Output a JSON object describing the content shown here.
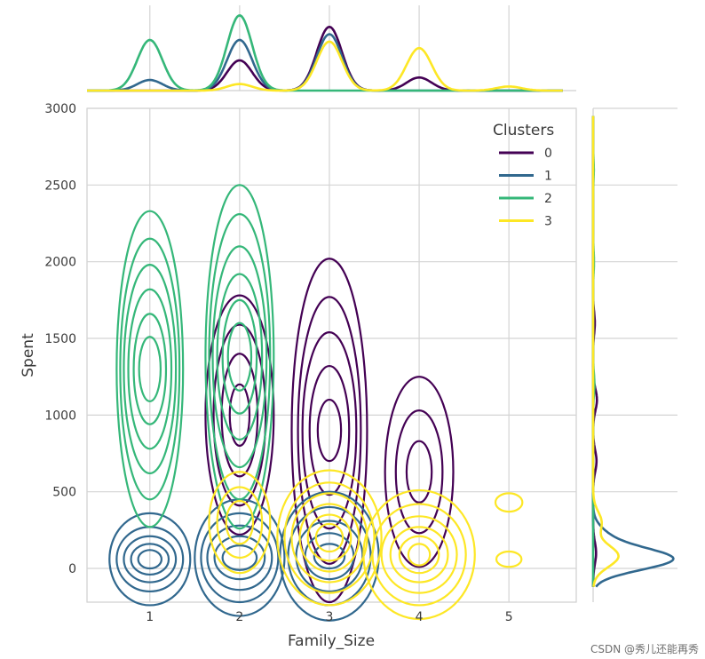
{
  "chart_data": {
    "type": "kde-jointplot",
    "xlabel": "Family_Size",
    "ylabel": "Spent",
    "x_ticks": [
      "1",
      "2",
      "3",
      "4",
      "5"
    ],
    "y_ticks": [
      "0",
      "500",
      "1000",
      "1500",
      "2000",
      "2500",
      "3000"
    ],
    "xlim": [
      0.3,
      5.75
    ],
    "ylim": [
      -220,
      3000
    ],
    "grid": true,
    "legend": {
      "title": "Clusters",
      "placement": "top-right",
      "entries": [
        "0",
        "1",
        "2",
        "3"
      ]
    },
    "series": [
      {
        "name": "0",
        "color": "#440154",
        "marginal_x_peaks": [
          {
            "x": 2,
            "h": 0.37
          },
          {
            "x": 3,
            "h": 0.78
          },
          {
            "x": 4,
            "h": 0.16
          }
        ],
        "marginal_y_peaks": [
          {
            "y": 100,
            "w": 0.035
          },
          {
            "y": 700,
            "w": 0.04
          },
          {
            "y": 1100,
            "w": 0.045
          },
          {
            "y": 1600,
            "w": 0.02
          }
        ],
        "kde_modes": [
          {
            "x": 2,
            "y": 1000,
            "levels": [
              [
                0.38,
                780
              ],
              [
                0.29,
                590
              ],
              [
                0.2,
                400
              ],
              [
                0.11,
                200
              ]
            ]
          },
          {
            "x": 3,
            "y": 900,
            "levels": [
              [
                0.42,
                1120
              ],
              [
                0.35,
                870
              ],
              [
                0.3,
                640
              ],
              [
                0.22,
                420
              ],
              [
                0.13,
                200
              ]
            ]
          },
          {
            "x": 4,
            "y": 630,
            "levels": [
              [
                0.38,
                620
              ],
              [
                0.26,
                400
              ],
              [
                0.14,
                200
              ]
            ]
          }
        ]
      },
      {
        "name": "1",
        "color": "#31688e",
        "marginal_x_peaks": [
          {
            "x": 1,
            "h": 0.13
          },
          {
            "x": 2,
            "h": 0.62
          },
          {
            "x": 3,
            "h": 0.69
          }
        ],
        "marginal_y_peaks": [
          {
            "y": 60,
            "w": 0.93
          },
          {
            "y": 200,
            "w": 0.15
          }
        ],
        "kde_modes": [
          {
            "x": 1,
            "y": 60,
            "levels": [
              [
                0.45,
                300
              ],
              [
                0.37,
                210
              ],
              [
                0.29,
                150
              ],
              [
                0.21,
                100
              ],
              [
                0.13,
                60
              ]
            ]
          },
          {
            "x": 2,
            "y": 70,
            "levels": [
              [
                0.5,
                380
              ],
              [
                0.43,
                290
              ],
              [
                0.36,
                210
              ],
              [
                0.28,
                140
              ],
              [
                0.19,
                80
              ]
            ]
          },
          {
            "x": 3,
            "y": 80,
            "levels": [
              [
                0.55,
                420
              ],
              [
                0.46,
                320
              ],
              [
                0.37,
                230
              ],
              [
                0.27,
                150
              ],
              [
                0.17,
                80
              ]
            ]
          }
        ]
      },
      {
        "name": "2",
        "color": "#35b779",
        "marginal_x_peaks": [
          {
            "x": 1,
            "h": 0.62
          },
          {
            "x": 2,
            "h": 0.92
          }
        ],
        "marginal_y_peaks": [
          {
            "y": 1200,
            "w": 0.015
          },
          {
            "y": 2000,
            "w": 0.01
          },
          {
            "y": 2600,
            "w": 0.008
          }
        ],
        "kde_modes": [
          {
            "x": 1,
            "y": 1300,
            "levels": [
              [
                0.37,
                1030
              ],
              [
                0.33,
                850
              ],
              [
                0.29,
                680
              ],
              [
                0.24,
                520
              ],
              [
                0.18,
                360
              ],
              [
                0.12,
                210
              ]
            ]
          },
          {
            "x": 2,
            "y": 1380,
            "levels": [
              [
                0.38,
                1120
              ],
              [
                0.34,
                930
              ],
              [
                0.3,
                720
              ],
              [
                0.25,
                540
              ],
              [
                0.19,
                370
              ],
              [
                0.13,
                220
              ]
            ]
          }
        ]
      },
      {
        "name": "3",
        "color": "#fde725",
        "marginal_x_peaks": [
          {
            "x": 2,
            "h": 0.08
          },
          {
            "x": 3,
            "h": 0.6
          },
          {
            "x": 4,
            "h": 0.52
          },
          {
            "x": 5,
            "h": 0.05
          }
        ],
        "marginal_y_peaks": [
          {
            "y": 80,
            "w": 0.3
          },
          {
            "y": 300,
            "w": 0.1
          }
        ],
        "kde_modes": [
          {
            "x": 2,
            "y": 300,
            "levels": [
              [
                0.34,
                330
              ],
              [
                0.25,
                230
              ],
              [
                0.15,
                140
              ]
            ]
          },
          {
            "x": 3,
            "y": 200,
            "levels": [
              [
                0.58,
                440
              ],
              [
                0.5,
                360
              ],
              [
                0.42,
                290
              ],
              [
                0.33,
                220
              ],
              [
                0.24,
                150
              ],
              [
                0.15,
                90
              ]
            ]
          },
          {
            "x": 4,
            "y": 90,
            "levels": [
              [
                0.62,
                420
              ],
              [
                0.52,
                330
              ],
              [
                0.42,
                250
              ],
              [
                0.32,
                180
              ],
              [
                0.22,
                120
              ],
              [
                0.12,
                70
              ]
            ]
          },
          {
            "x": 5,
            "y": 60,
            "levels": [
              [
                0.14,
                50
              ]
            ]
          },
          {
            "x": 5,
            "y": 430,
            "levels": [
              [
                0.15,
                60
              ]
            ]
          }
        ]
      }
    ]
  },
  "watermark": "CSDN @秀儿还能再秀"
}
